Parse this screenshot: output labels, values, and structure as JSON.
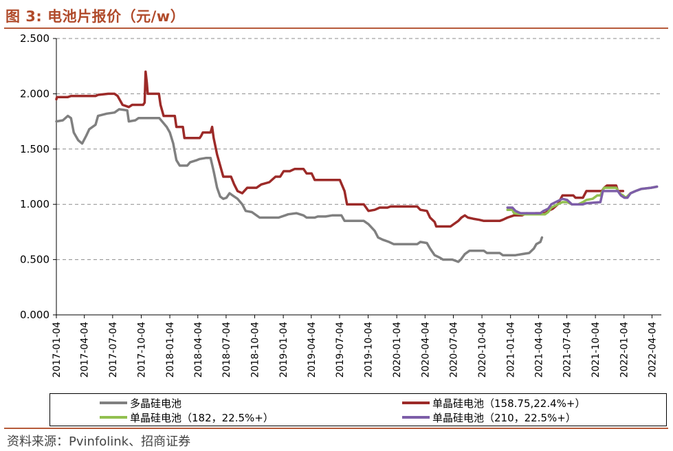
{
  "header": {
    "title": "图 3:  电池片报价（元/w）"
  },
  "source": {
    "text": "资料来源：Pvinfolink、招商证券"
  },
  "colors": {
    "accent": "#b04a2a",
    "rule": "#b65a3a"
  },
  "chart_data": {
    "type": "line",
    "title": "",
    "xlabel": "",
    "ylabel": "",
    "ylim": [
      0,
      2.5
    ],
    "grid": "horizontal dashed",
    "legend_position": "bottom",
    "x_ticks": [
      "2017-01-04",
      "2017-04-04",
      "2017-07-04",
      "2017-10-04",
      "2018-01-04",
      "2018-04-04",
      "2018-07-04",
      "2018-10-04",
      "2019-01-04",
      "2019-04-04",
      "2019-07-04",
      "2019-10-04",
      "2020-01-04",
      "2020-04-04",
      "2020-07-04",
      "2020-10-04",
      "2021-01-04",
      "2021-04-04",
      "2021-07-04",
      "2021-10-04",
      "2022-01-04",
      "2022-04-04"
    ],
    "y_ticks": [
      "0.000",
      "0.500",
      "1.000",
      "1.500",
      "2.000",
      "2.500"
    ],
    "series": [
      {
        "name": "多晶硅电池",
        "color": "#808080",
        "points": [
          [
            "2017-01-04",
            1.75
          ],
          [
            "2017-01-25",
            1.76
          ],
          [
            "2017-02-10",
            1.8
          ],
          [
            "2017-02-20",
            1.78
          ],
          [
            "2017-03-01",
            1.65
          ],
          [
            "2017-03-15",
            1.58
          ],
          [
            "2017-03-28",
            1.55
          ],
          [
            "2017-04-10",
            1.62
          ],
          [
            "2017-04-20",
            1.68
          ],
          [
            "2017-05-10",
            1.72
          ],
          [
            "2017-05-18",
            1.8
          ],
          [
            "2017-06-15",
            1.82
          ],
          [
            "2017-07-10",
            1.83
          ],
          [
            "2017-07-25",
            1.86
          ],
          [
            "2017-08-20",
            1.85
          ],
          [
            "2017-08-25",
            1.75
          ],
          [
            "2017-09-15",
            1.76
          ],
          [
            "2017-09-25",
            1.78
          ],
          [
            "2017-11-10",
            1.78
          ],
          [
            "2017-12-01",
            1.78
          ],
          [
            "2017-12-10",
            1.75
          ],
          [
            "2017-12-25",
            1.7
          ],
          [
            "2018-01-04",
            1.65
          ],
          [
            "2018-01-15",
            1.55
          ],
          [
            "2018-01-25",
            1.4
          ],
          [
            "2018-02-05",
            1.35
          ],
          [
            "2018-03-01",
            1.35
          ],
          [
            "2018-03-10",
            1.38
          ],
          [
            "2018-04-01",
            1.4
          ],
          [
            "2018-04-10",
            1.41
          ],
          [
            "2018-05-01",
            1.42
          ],
          [
            "2018-05-15",
            1.42
          ],
          [
            "2018-05-25",
            1.3
          ],
          [
            "2018-06-05",
            1.15
          ],
          [
            "2018-06-15",
            1.07
          ],
          [
            "2018-06-25",
            1.05
          ],
          [
            "2018-07-05",
            1.06
          ],
          [
            "2018-07-15",
            1.1
          ],
          [
            "2018-07-25",
            1.08
          ],
          [
            "2018-08-10",
            1.05
          ],
          [
            "2018-08-25",
            1.0
          ],
          [
            "2018-09-05",
            0.94
          ],
          [
            "2018-09-25",
            0.93
          ],
          [
            "2018-10-10",
            0.9
          ],
          [
            "2018-10-20",
            0.88
          ],
          [
            "2018-12-20",
            0.88
          ],
          [
            "2019-01-10",
            0.9
          ],
          [
            "2019-01-20",
            0.91
          ],
          [
            "2019-02-15",
            0.92
          ],
          [
            "2019-03-10",
            0.9
          ],
          [
            "2019-03-20",
            0.88
          ],
          [
            "2019-04-15",
            0.88
          ],
          [
            "2019-04-25",
            0.89
          ],
          [
            "2019-05-20",
            0.89
          ],
          [
            "2019-06-10",
            0.9
          ],
          [
            "2019-07-10",
            0.9
          ],
          [
            "2019-07-20",
            0.85
          ],
          [
            "2019-09-20",
            0.85
          ],
          [
            "2019-10-05",
            0.82
          ],
          [
            "2019-10-25",
            0.76
          ],
          [
            "2019-11-05",
            0.7
          ],
          [
            "2019-11-20",
            0.68
          ],
          [
            "2019-12-10",
            0.66
          ],
          [
            "2019-12-25",
            0.64
          ],
          [
            "2020-03-10",
            0.64
          ],
          [
            "2020-03-20",
            0.66
          ],
          [
            "2020-04-10",
            0.65
          ],
          [
            "2020-04-20",
            0.6
          ],
          [
            "2020-05-05",
            0.54
          ],
          [
            "2020-05-20",
            0.52
          ],
          [
            "2020-06-01",
            0.5
          ],
          [
            "2020-07-01",
            0.5
          ],
          [
            "2020-07-20",
            0.48
          ],
          [
            "2020-07-28",
            0.5
          ],
          [
            "2020-08-10",
            0.55
          ],
          [
            "2020-08-25",
            0.58
          ],
          [
            "2020-09-05",
            0.58
          ],
          [
            "2020-10-10",
            0.58
          ],
          [
            "2020-10-20",
            0.56
          ],
          [
            "2020-11-30",
            0.56
          ],
          [
            "2020-12-10",
            0.54
          ],
          [
            "2021-01-20",
            0.54
          ],
          [
            "2021-02-10",
            0.55
          ],
          [
            "2021-03-05",
            0.56
          ],
          [
            "2021-03-20",
            0.6
          ],
          [
            "2021-03-28",
            0.64
          ],
          [
            "2021-04-10",
            0.66
          ],
          [
            "2021-04-15",
            0.7
          ]
        ]
      },
      {
        "name": "单晶硅电池（158.75,22.4%+）",
        "color": "#9c2a28",
        "points": [
          [
            "2017-01-04",
            1.95
          ],
          [
            "2017-01-06",
            1.97
          ],
          [
            "2017-02-10",
            1.97
          ],
          [
            "2017-02-20",
            1.98
          ],
          [
            "2017-05-10",
            1.98
          ],
          [
            "2017-05-18",
            1.99
          ],
          [
            "2017-06-20",
            2.0
          ],
          [
            "2017-07-10",
            2.0
          ],
          [
            "2017-07-20",
            1.98
          ],
          [
            "2017-08-05",
            1.9
          ],
          [
            "2017-08-25",
            1.88
          ],
          [
            "2017-09-05",
            1.9
          ],
          [
            "2017-10-10",
            1.9
          ],
          [
            "2017-10-15",
            1.92
          ],
          [
            "2017-10-18",
            2.2
          ],
          [
            "2017-10-22",
            2.1
          ],
          [
            "2017-10-25",
            2.0
          ],
          [
            "2017-11-30",
            2.0
          ],
          [
            "2017-12-05",
            1.9
          ],
          [
            "2017-12-15",
            1.8
          ],
          [
            "2018-01-20",
            1.8
          ],
          [
            "2018-01-25",
            1.7
          ],
          [
            "2018-02-15",
            1.7
          ],
          [
            "2018-02-20",
            1.6
          ],
          [
            "2018-04-10",
            1.6
          ],
          [
            "2018-04-15",
            1.62
          ],
          [
            "2018-04-20",
            1.65
          ],
          [
            "2018-05-15",
            1.65
          ],
          [
            "2018-05-20",
            1.7
          ],
          [
            "2018-05-25",
            1.6
          ],
          [
            "2018-06-05",
            1.45
          ],
          [
            "2018-06-15",
            1.35
          ],
          [
            "2018-06-25",
            1.25
          ],
          [
            "2018-07-20",
            1.25
          ],
          [
            "2018-07-30",
            1.18
          ],
          [
            "2018-08-10",
            1.12
          ],
          [
            "2018-08-25",
            1.1
          ],
          [
            "2018-09-10",
            1.15
          ],
          [
            "2018-10-10",
            1.15
          ],
          [
            "2018-10-25",
            1.18
          ],
          [
            "2018-11-20",
            1.2
          ],
          [
            "2018-12-10",
            1.25
          ],
          [
            "2018-12-25",
            1.25
          ],
          [
            "2019-01-05",
            1.3
          ],
          [
            "2019-01-25",
            1.3
          ],
          [
            "2019-02-10",
            1.32
          ],
          [
            "2019-03-10",
            1.32
          ],
          [
            "2019-03-20",
            1.28
          ],
          [
            "2019-04-05",
            1.28
          ],
          [
            "2019-04-15",
            1.22
          ],
          [
            "2019-07-05",
            1.22
          ],
          [
            "2019-07-20",
            1.12
          ],
          [
            "2019-07-28",
            1.0
          ],
          [
            "2019-09-20",
            1.0
          ],
          [
            "2019-10-05",
            0.94
          ],
          [
            "2019-10-25",
            0.95
          ],
          [
            "2019-11-10",
            0.97
          ],
          [
            "2019-12-05",
            0.97
          ],
          [
            "2019-12-15",
            0.98
          ],
          [
            "2019-12-31",
            0.98
          ],
          [
            "2020-03-10",
            0.98
          ],
          [
            "2020-03-20",
            0.95
          ],
          [
            "2020-04-10",
            0.94
          ],
          [
            "2020-04-20",
            0.88
          ],
          [
            "2020-05-05",
            0.84
          ],
          [
            "2020-05-10",
            0.8
          ],
          [
            "2020-06-25",
            0.8
          ],
          [
            "2020-07-05",
            0.82
          ],
          [
            "2020-07-20",
            0.85
          ],
          [
            "2020-07-30",
            0.88
          ],
          [
            "2020-08-10",
            0.9
          ],
          [
            "2020-08-20",
            0.88
          ],
          [
            "2020-09-05",
            0.87
          ],
          [
            "2020-09-25",
            0.86
          ],
          [
            "2020-10-10",
            0.85
          ],
          [
            "2020-11-30",
            0.85
          ],
          [
            "2020-12-10",
            0.86
          ],
          [
            "2020-12-25",
            0.88
          ],
          [
            "2021-01-15",
            0.9
          ],
          [
            "2021-02-10",
            0.9
          ],
          [
            "2021-02-25",
            0.92
          ],
          [
            "2021-03-15",
            0.91
          ],
          [
            "2021-03-25",
            0.92
          ],
          [
            "2021-04-25",
            0.92
          ],
          [
            "2021-05-05",
            0.94
          ],
          [
            "2021-05-20",
            0.96
          ],
          [
            "2021-06-05",
            1.0
          ],
          [
            "2021-06-20",
            1.08
          ],
          [
            "2021-07-25",
            1.08
          ],
          [
            "2021-08-01",
            1.06
          ],
          [
            "2021-08-25",
            1.06
          ],
          [
            "2021-09-05",
            1.12
          ],
          [
            "2021-10-25",
            1.12
          ],
          [
            "2021-11-01",
            1.15
          ],
          [
            "2021-11-10",
            1.17
          ],
          [
            "2021-12-10",
            1.17
          ],
          [
            "2021-12-15",
            1.12
          ],
          [
            "2022-01-01",
            1.12
          ]
        ]
      },
      {
        "name": "单晶硅电池（182，22.5%+）",
        "color": "#92c050",
        "points": [
          [
            "2020-12-25",
            0.95
          ],
          [
            "2021-01-10",
            0.95
          ],
          [
            "2021-01-15",
            0.92
          ],
          [
            "2021-02-10",
            0.91
          ],
          [
            "2021-04-25",
            0.91
          ],
          [
            "2021-05-05",
            0.93
          ],
          [
            "2021-05-15",
            0.97
          ],
          [
            "2021-06-05",
            1.0
          ],
          [
            "2021-06-20",
            1.02
          ],
          [
            "2021-07-05",
            1.02
          ],
          [
            "2021-07-20",
            1.0
          ],
          [
            "2021-08-10",
            1.0
          ],
          [
            "2021-08-25",
            1.02
          ],
          [
            "2021-09-05",
            1.04
          ],
          [
            "2021-09-25",
            1.05
          ],
          [
            "2021-10-10",
            1.08
          ],
          [
            "2021-10-20",
            1.08
          ],
          [
            "2021-11-01",
            1.15
          ],
          [
            "2021-12-10",
            1.15
          ],
          [
            "2021-12-20",
            1.1
          ],
          [
            "2022-01-01",
            1.08
          ],
          [
            "2022-01-10",
            1.06
          ],
          [
            "2022-01-25",
            1.1
          ],
          [
            "2022-02-10",
            1.12
          ],
          [
            "2022-03-01",
            1.14
          ],
          [
            "2022-04-01",
            1.15
          ],
          [
            "2022-04-20",
            1.16
          ]
        ]
      },
      {
        "name": "单晶硅电池（210，22.5%+）",
        "color": "#7d5ea8",
        "points": [
          [
            "2020-12-25",
            0.97
          ],
          [
            "2021-01-10",
            0.97
          ],
          [
            "2021-01-20",
            0.94
          ],
          [
            "2021-02-05",
            0.92
          ],
          [
            "2021-04-10",
            0.92
          ],
          [
            "2021-04-20",
            0.94
          ],
          [
            "2021-05-05",
            0.96
          ],
          [
            "2021-05-15",
            1.0
          ],
          [
            "2021-06-05",
            1.03
          ],
          [
            "2021-06-20",
            1.05
          ],
          [
            "2021-07-05",
            1.04
          ],
          [
            "2021-07-20",
            1.0
          ],
          [
            "2021-08-25",
            1.0
          ],
          [
            "2021-09-05",
            1.01
          ],
          [
            "2021-10-20",
            1.02
          ],
          [
            "2021-10-28",
            1.12
          ],
          [
            "2021-12-15",
            1.12
          ],
          [
            "2021-12-25",
            1.08
          ],
          [
            "2022-01-05",
            1.06
          ],
          [
            "2022-01-15",
            1.06
          ],
          [
            "2022-01-25",
            1.1
          ],
          [
            "2022-02-10",
            1.12
          ],
          [
            "2022-03-01",
            1.14
          ],
          [
            "2022-04-01",
            1.15
          ],
          [
            "2022-04-20",
            1.16
          ]
        ]
      }
    ]
  }
}
